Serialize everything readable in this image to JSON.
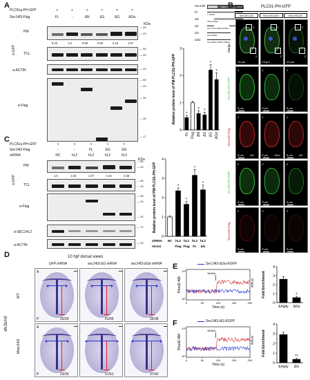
{
  "panels": {
    "a": "A",
    "b": "B",
    "c": "C",
    "d": "D",
    "e": "E",
    "f": "F"
  },
  "panelA": {
    "row1_label": "PLCδ1a-PH-GFP",
    "row2_label": "Sec14l3-Flag",
    "row1_marks": [
      "+",
      "+",
      "+",
      "+",
      "+",
      "+"
    ],
    "row2_marks": [
      "FL",
      "-",
      "ΔN",
      "ΔS",
      "ΔG",
      "ΔGα"
    ],
    "pm": "PM",
    "tcl": "TCL",
    "agfp": "α-GFP",
    "actin": "α-ACTIN",
    "aflag": "α-Flag",
    "kda": "KDa",
    "quant": [
      "0.43",
      "1.0",
      "0.59",
      "0.56",
      "2.18",
      "1.87"
    ],
    "mw_pm": [
      "55",
      "43"
    ],
    "mw_tcl": [
      "55",
      "43"
    ],
    "mw_actin": [
      "43"
    ],
    "mw_flag": [
      "55",
      "43",
      "34",
      "26",
      "17"
    ]
  },
  "domains": {
    "title": "Sec14l3",
    "rows": [
      {
        "label": "FL",
        "nums": [
          "1",
          "400aa"
        ]
      },
      {
        "label": "ΔN",
        "nums": [
          "75aa",
          "400aa"
        ]
      },
      {
        "label": "ΔS",
        "nums": [
          "1aa",
          "77aa",
          "245aa",
          "400aa"
        ]
      },
      {
        "label": "ΔG",
        "nums": [
          "1aa",
          "246aa"
        ]
      },
      {
        "label": "ΔGα",
        "nums": [
          "1aa",
          "246aa",
          "395aa",
          "400aa"
        ]
      }
    ],
    "seg1": "CRAL-TRIO",
    "seg2": "GOLD"
  },
  "chartA": {
    "chart_data": {
      "type": "bar",
      "categories": [
        "FL",
        "Flag",
        "ΔN",
        "ΔS",
        "ΔG",
        "ΔGα"
      ],
      "values": [
        0.45,
        1.0,
        0.6,
        0.55,
        2.2,
        1.85
      ],
      "errors": [
        0.08,
        0.05,
        0.1,
        0.1,
        0.2,
        0.25
      ],
      "ylabel": "Relative protein level of PM PLCδ1-PH-GFP",
      "ylim": [
        0,
        3
      ],
      "yticks": [
        "0",
        "1",
        "2",
        "3"
      ],
      "stars": [
        "*",
        "",
        "*",
        "*",
        "*",
        "*"
      ],
      "bar_colors": [
        "#000000",
        "#ffffff",
        "#000000",
        "#000000",
        "#000000",
        "#000000"
      ]
    }
  },
  "panelB": {
    "title": "PLCδ1-PH-GFP",
    "cols": [
      "Sec14l3-ΔG",
      "Sec14l3-ΔGα",
      "Sec14l3-ΔS"
    ],
    "rows": [
      "Merge",
      "PLCδ1-PH-GFP",
      "Sec14l3-Flag",
      "PLCδ1-PH-GFP",
      "Sec14l3-Flag"
    ],
    "scale_merge": "10 μm",
    "scale_zoom": "5 μm",
    "insets": [
      "1",
      "2"
    ],
    "channel_labels": [
      "ΔG",
      "ΔGα",
      "ΔS"
    ]
  },
  "panelC": {
    "row1_label": "PLCδ1a-PH-GFP",
    "row2_label": "Sec14l3-Flag",
    "row3_label": "shRNA",
    "row1_marks": [
      "+",
      "+",
      "+",
      "+",
      "+"
    ],
    "row2_marks": [
      "-",
      "-",
      "FL",
      "ΔG",
      "ΔG"
    ],
    "row3_marks": [
      "NC",
      "hL2",
      "hL2",
      "hL2",
      "hL2"
    ],
    "pm": "PM",
    "tcl": "TCL",
    "agfp": "α-GFP",
    "aflag": "α-Flag",
    "asec": "α-SEC14L2",
    "actin": "α-ACTIN",
    "kda": "KDa",
    "quant": [
      "1.0",
      "2.32",
      "1.67",
      "3.15",
      "2.36"
    ],
    "mw_pm": [
      "55",
      "43"
    ],
    "mw_tcl": [
      "55",
      "43"
    ],
    "mw_flag": [
      "55",
      "43",
      "34"
    ],
    "mw_sec": [
      "72"
    ],
    "mw_actin": [
      "43"
    ]
  },
  "chartC": {
    "chart_data": {
      "type": "bar",
      "categories": [
        "Vector",
        "Flag",
        "Flag",
        "FL",
        "ΔG"
      ],
      "shrna": [
        "NC",
        "hL2",
        "hL2",
        "hL2",
        "hL2"
      ],
      "values": [
        1.0,
        2.35,
        1.65,
        3.15,
        2.4
      ],
      "errors": [
        0.05,
        0.15,
        0.15,
        0.3,
        0.25
      ],
      "ylabel": "Relative protein level of PM PLCδ1-PH-GFP",
      "ylim": [
        0,
        4
      ],
      "yticks": [
        "0",
        "1",
        "2",
        "3",
        "4"
      ],
      "stars": [
        "",
        "*",
        "*",
        "*",
        "*"
      ],
      "bar_colors": [
        "#ffffff",
        "#000000",
        "#000000",
        "#000000",
        "#000000"
      ],
      "xrow1_label": "shRNA",
      "xrow2_label": "Vector"
    }
  },
  "panelD": {
    "title": "10 hpf dorsal views",
    "cols": [
      "GFP mRNA",
      "sec14l3-ΔG mRNA",
      "sec14l3-ΔGα mRNA"
    ],
    "rows": [
      "WT",
      "Msec14l3"
    ],
    "gene": "dlx3b/ntl",
    "axis_a": "A",
    "axis_p": "P",
    "counts": [
      "26/29",
      "61/65",
      "35/38",
      "23/25",
      "57/61",
      "37/42"
    ]
  },
  "panelE": {
    "legend": "Sec14l3-ΔGα-EGFP",
    "ylabel": "Rhod2-AM",
    "xlabel": "Time (s)",
    "annot": "Wnt5a",
    "empty": "Empty",
    "xticks": [
      "0",
      "50",
      "100",
      "150",
      "200"
    ],
    "ytop": "10²",
    "ybot": "10⁰",
    "chart_data": {
      "type": "bar",
      "categories": [
        "Empty",
        "ΔGα"
      ],
      "values": [
        2.6,
        0.55
      ],
      "errors": [
        0.3,
        0.15
      ],
      "stars": [
        "",
        "*"
      ],
      "ylabel": "Fold Enrichment",
      "ylim": [
        0,
        4
      ],
      "yticks": [
        "0",
        "1",
        "2",
        "3",
        "4"
      ]
    }
  },
  "panelF": {
    "legend": "Sec14l3-ΔG-EGFP",
    "ylabel": "Rhod2-AM",
    "xlabel": "Time (s)",
    "annot": "Wnt5a",
    "empty": "Empty",
    "xticks": [
      "0",
      "50",
      "100",
      "150",
      "200"
    ],
    "ytop": "10²",
    "ybot": "10⁰",
    "chart_data": {
      "type": "bar",
      "categories": [
        "Empty",
        "ΔG"
      ],
      "values": [
        2.9,
        0.35
      ],
      "errors": [
        0.25,
        0.1
      ],
      "stars": [
        "",
        "**"
      ],
      "ylabel": "Fold Enrichment",
      "ylim": [
        0,
        4
      ],
      "yticks": [
        "0",
        "1",
        "2",
        "3",
        "4"
      ]
    }
  },
  "colors": {
    "red": "#d42020",
    "blue": "#2233cc",
    "green": "#2fbf2f",
    "flagred": "#d22222"
  }
}
